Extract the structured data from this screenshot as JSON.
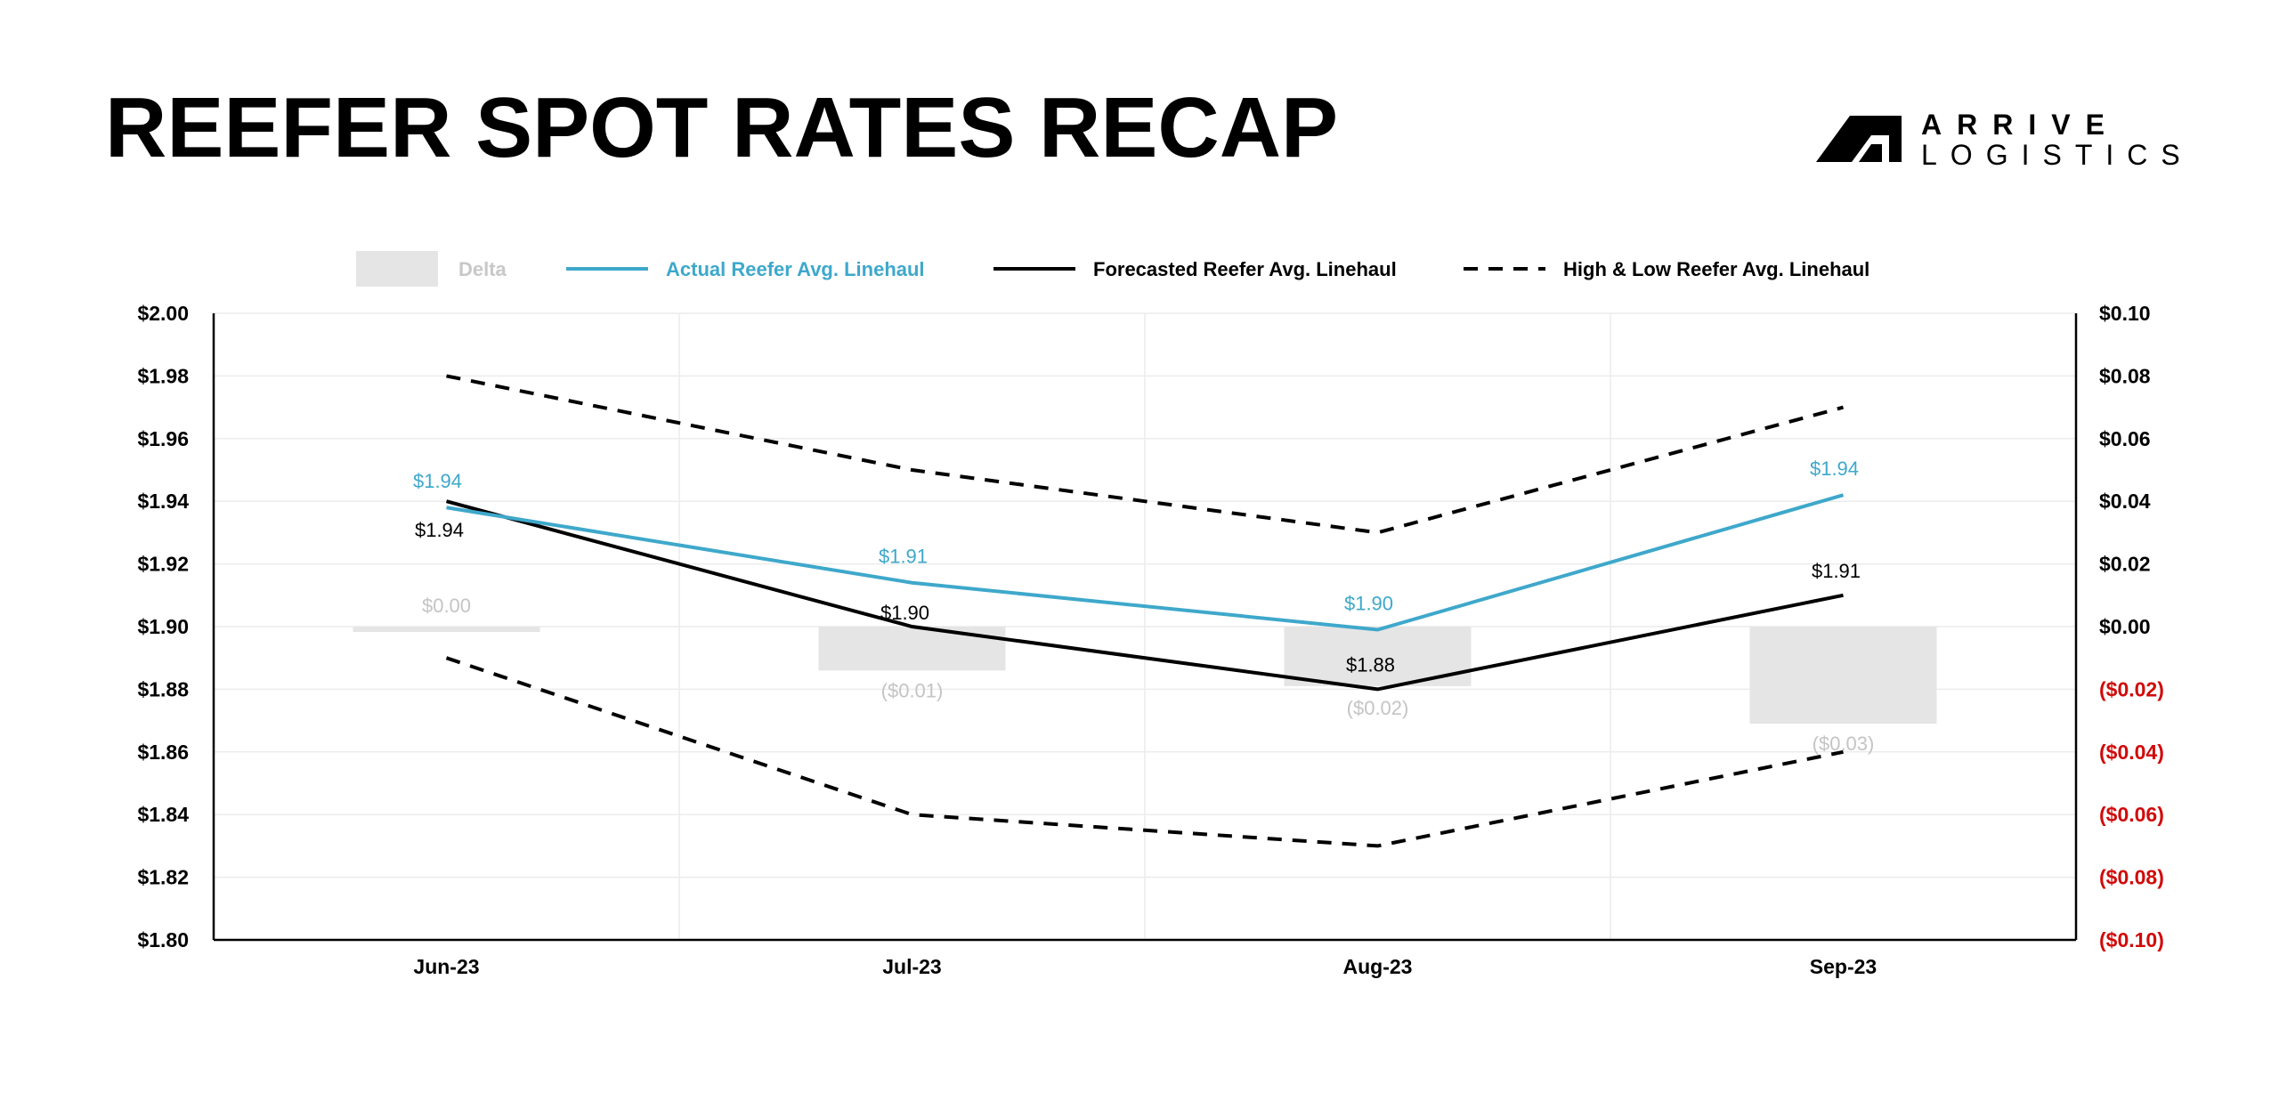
{
  "header": {
    "title": "REEFER SPOT RATES RECAP",
    "logo_line1": "ARRIVE",
    "logo_line2": "LOGISTICS"
  },
  "legend": [
    {
      "key": "delta",
      "label": "Delta",
      "color": "#c8c8c8"
    },
    {
      "key": "actual",
      "label": "Actual Reefer Avg. Linehaul",
      "color": "#3ea8cb"
    },
    {
      "key": "forecast",
      "label": "Forecasted Reefer Avg. Linehaul",
      "color": "#000000"
    },
    {
      "key": "highlow",
      "label": "High & Low Reefer Avg. Linehaul",
      "color": "#000000"
    }
  ],
  "chart_data": {
    "type": "line",
    "categories": [
      "Jun-23",
      "Jul-23",
      "Aug-23",
      "Sep-23"
    ],
    "y_left": {
      "min": 1.8,
      "max": 2.0,
      "ticks": [
        {
          "value": 2.0,
          "label": "$2.00"
        },
        {
          "value": 1.98,
          "label": "$1.98"
        },
        {
          "value": 1.96,
          "label": "$1.96"
        },
        {
          "value": 1.94,
          "label": "$1.94"
        },
        {
          "value": 1.92,
          "label": "$1.92"
        },
        {
          "value": 1.9,
          "label": "$1.90"
        },
        {
          "value": 1.88,
          "label": "$1.88"
        },
        {
          "value": 1.86,
          "label": "$1.86"
        },
        {
          "value": 1.84,
          "label": "$1.84"
        },
        {
          "value": 1.82,
          "label": "$1.82"
        },
        {
          "value": 1.8,
          "label": "$1.80"
        }
      ]
    },
    "y_right": {
      "min": -0.1,
      "max": 0.1,
      "ticks": [
        {
          "value": 0.1,
          "label": "$0.10"
        },
        {
          "value": 0.08,
          "label": "$0.08"
        },
        {
          "value": 0.06,
          "label": "$0.06"
        },
        {
          "value": 0.04,
          "label": "$0.04"
        },
        {
          "value": 0.02,
          "label": "$0.02"
        },
        {
          "value": 0.0,
          "label": "$0.00"
        },
        {
          "value": -0.02,
          "label": "($0.02)"
        },
        {
          "value": -0.04,
          "label": "($0.04)"
        },
        {
          "value": -0.06,
          "label": "($0.06)"
        },
        {
          "value": -0.08,
          "label": "($0.08)"
        },
        {
          "value": -0.1,
          "label": "($0.10)"
        }
      ],
      "negative_color": "#d10a0a"
    },
    "delta": {
      "name": "Delta",
      "values": [
        0.0,
        -0.014,
        -0.019,
        -0.031
      ],
      "labels": [
        "$0.00",
        "($0.01)",
        "($0.02)",
        "($0.03)"
      ],
      "color": "#e6e5e5",
      "label_color": "#c4c4c4"
    },
    "actual": {
      "name": "Actual Reefer Avg. Linehaul",
      "values": [
        1.938,
        1.914,
        1.899,
        1.942
      ],
      "labels": [
        "$1.94",
        "$1.91",
        "$1.90",
        "$1.94"
      ],
      "color": "#3ea8cb"
    },
    "forecast": {
      "name": "Forecasted Reefer Avg. Linehaul",
      "values": [
        1.94,
        1.9,
        1.88,
        1.91
      ],
      "labels": [
        "$1.94",
        "$1.90",
        "$1.88",
        "$1.91"
      ],
      "color": "#000000"
    },
    "high": {
      "name": "High & Low Reefer Avg. Linehaul",
      "values": [
        1.98,
        1.95,
        1.93,
        1.97
      ]
    },
    "low": {
      "name": "High & Low Reefer Avg. Linehaul",
      "values": [
        1.89,
        1.84,
        1.83,
        1.86
      ]
    }
  }
}
